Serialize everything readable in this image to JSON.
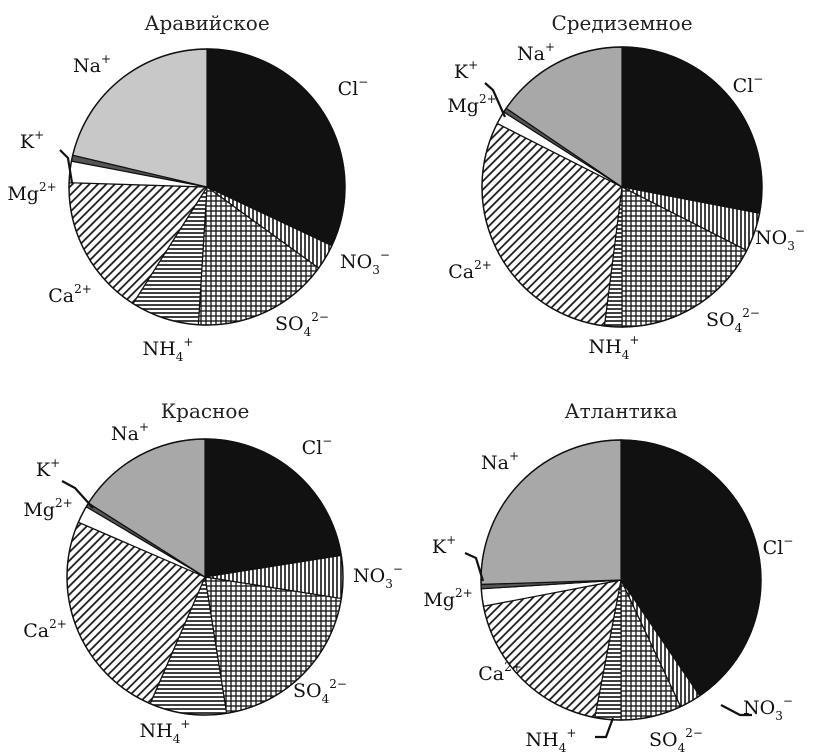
{
  "chart_data": [
    {
      "type": "pie",
      "title": "Аравийское",
      "start": "12 o'clock, clockwise",
      "slices": [
        {
          "ion": "Cl",
          "charge": "−",
          "value": 32.0,
          "fill": "solid",
          "color": "#111111"
        },
        {
          "ion": "NO",
          "sub": "3",
          "charge": "−",
          "value": 3.0,
          "fill": "vlines",
          "color": "#111111"
        },
        {
          "ion": "SO",
          "sub": "4",
          "charge": "2−",
          "value": 16.0,
          "fill": "grid",
          "color": "#111111"
        },
        {
          "ion": "NH",
          "sub": "4",
          "charge": "+",
          "value": 8.0,
          "fill": "hlines",
          "color": "#111111"
        },
        {
          "ion": "Ca",
          "charge": "2+",
          "value": 16.5,
          "fill": "diag",
          "color": "#111111"
        },
        {
          "ion": "Mg",
          "charge": "2+",
          "value": 2.5,
          "fill": "white",
          "color": "#ffffff"
        },
        {
          "ion": "K",
          "charge": "+",
          "value": 0.7,
          "fill": "solid",
          "color": "#555555"
        },
        {
          "ion": "Na",
          "charge": "+",
          "value": 21.3,
          "fill": "solid",
          "color": "#c8c8c8"
        }
      ]
    },
    {
      "type": "pie",
      "title": "Средиземное",
      "start": "12 o'clock, clockwise",
      "slices": [
        {
          "ion": "Cl",
          "charge": "−",
          "value": 28.0,
          "fill": "solid",
          "color": "#111111"
        },
        {
          "ion": "NO",
          "sub": "3",
          "charge": "−",
          "value": 4.5,
          "fill": "vlines",
          "color": "#111111"
        },
        {
          "ion": "SO",
          "sub": "4",
          "charge": "2−",
          "value": 17.5,
          "fill": "grid",
          "color": "#111111"
        },
        {
          "ion": "NH",
          "sub": "4",
          "charge": "+",
          "value": 2.0,
          "fill": "hlines",
          "color": "#111111"
        },
        {
          "ion": "Ca",
          "charge": "2+",
          "value": 30.5,
          "fill": "diag",
          "color": "#111111"
        },
        {
          "ion": "Mg",
          "charge": "2+",
          "value": 1.5,
          "fill": "white",
          "color": "#ffffff"
        },
        {
          "ion": "K",
          "charge": "+",
          "value": 0.5,
          "fill": "solid",
          "color": "#555555"
        },
        {
          "ion": "Na",
          "charge": "+",
          "value": 15.5,
          "fill": "solid",
          "color": "#a8a8a8"
        }
      ]
    },
    {
      "type": "pie",
      "title": "Красное",
      "start": "12 o'clock, clockwise",
      "slices": [
        {
          "ion": "Cl",
          "charge": "−",
          "value": 22.5,
          "fill": "solid",
          "color": "#111111"
        },
        {
          "ion": "NO",
          "sub": "3",
          "charge": "−",
          "value": 5.0,
          "fill": "vlines",
          "color": "#111111"
        },
        {
          "ion": "SO",
          "sub": "4",
          "charge": "2−",
          "value": 20.0,
          "fill": "grid",
          "color": "#111111"
        },
        {
          "ion": "NH",
          "sub": "4",
          "charge": "+",
          "value": 9.0,
          "fill": "hlines",
          "color": "#111111"
        },
        {
          "ion": "Ca",
          "charge": "2+",
          "value": 25.0,
          "fill": "diag",
          "color": "#111111"
        },
        {
          "ion": "Mg",
          "charge": "2+",
          "value": 2.0,
          "fill": "white",
          "color": "#ffffff"
        },
        {
          "ion": "K",
          "charge": "+",
          "value": 0.5,
          "fill": "solid",
          "color": "#555555"
        },
        {
          "ion": "Na",
          "charge": "+",
          "value": 16.0,
          "fill": "solid",
          "color": "#a8a8a8"
        }
      ]
    },
    {
      "type": "pie",
      "title": "Атлантика",
      "start": "12 o'clock, clockwise",
      "slices": [
        {
          "ion": "Cl",
          "charge": "−",
          "value": 40.5,
          "fill": "solid",
          "color": "#111111"
        },
        {
          "ion": "NO",
          "sub": "3",
          "charge": "−",
          "value": 2.5,
          "fill": "vlines",
          "color": "#111111"
        },
        {
          "ion": "SO",
          "sub": "4",
          "charge": "2−",
          "value": 7.0,
          "fill": "grid",
          "color": "#111111"
        },
        {
          "ion": "NH",
          "sub": "4",
          "charge": "+",
          "value": 3.0,
          "fill": "hlines",
          "color": "#111111"
        },
        {
          "ion": "Ca",
          "charge": "2+",
          "value": 19.0,
          "fill": "diag",
          "color": "#111111"
        },
        {
          "ion": "Mg",
          "charge": "2+",
          "value": 2.0,
          "fill": "white",
          "color": "#ffffff"
        },
        {
          "ion": "K",
          "charge": "+",
          "value": 0.5,
          "fill": "solid",
          "color": "#555555"
        },
        {
          "ion": "Na",
          "charge": "+",
          "value": 25.5,
          "fill": "solid",
          "color": "#a8a8a8"
        }
      ]
    }
  ]
}
